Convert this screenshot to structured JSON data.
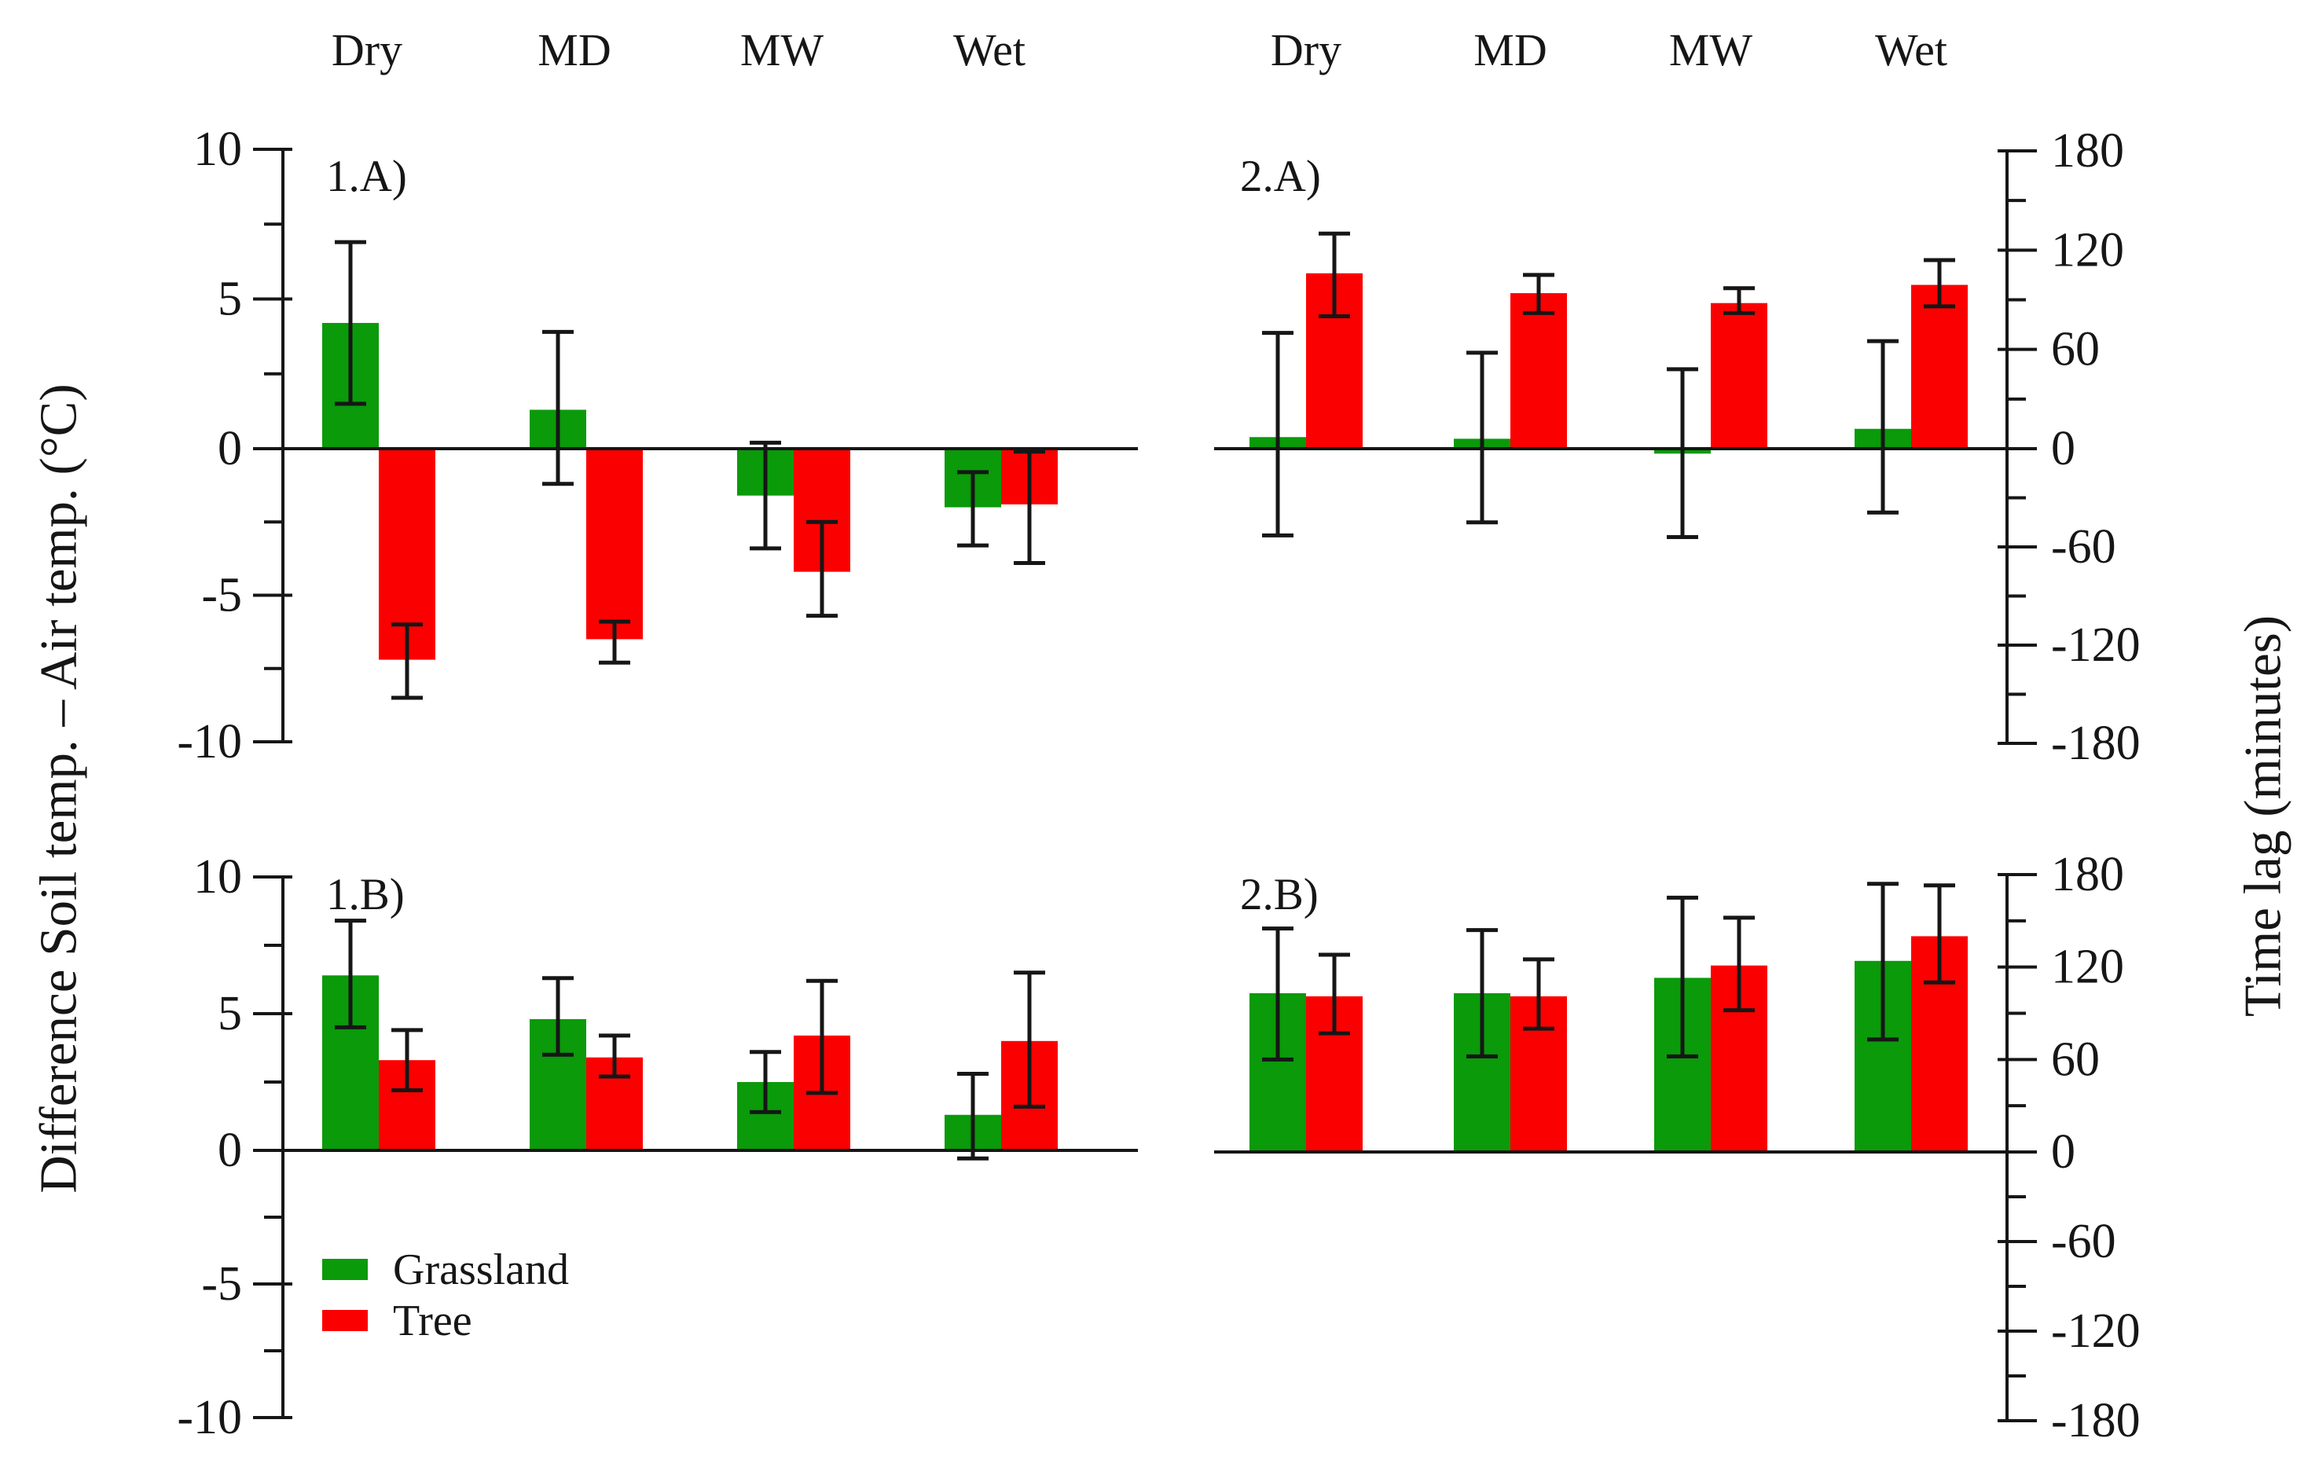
{
  "figure": {
    "background": "#ffffff",
    "colors": {
      "grassland": "#0a9a0a",
      "tree": "#fb0000",
      "axis": "#161616",
      "text": "#161616"
    },
    "left_axis_title": "Difference  Soil  temp. – Air temp. (°C)",
    "right_axis_title": "Time lag (minutes)",
    "column_labels_left": [
      "Dry",
      "MD",
      "MW",
      "Wet"
    ],
    "column_labels_right": [
      "Dry",
      "MD",
      "MW",
      "Wet"
    ],
    "legend": [
      {
        "label": "Grassland",
        "color_key": "grassland"
      },
      {
        "label": "Tree",
        "color_key": "tree"
      }
    ]
  },
  "chart_data": [
    {
      "id": "1A",
      "label": "1.A)",
      "type": "bar",
      "categories": [
        "Dry",
        "MD",
        "MW",
        "Wet"
      ],
      "ylim": [
        -10,
        10
      ],
      "ytick_major": 5,
      "ytick_minor": 2.5,
      "axis_side": "left",
      "grid": false,
      "series": [
        {
          "name": "Grassland",
          "color_key": "grassland",
          "values": [
            4.2,
            1.3,
            -1.6,
            -2.0
          ],
          "error_low": [
            1.5,
            -1.2,
            -3.4,
            -3.3
          ],
          "error_high": [
            6.9,
            3.9,
            0.2,
            -0.8
          ]
        },
        {
          "name": "Tree",
          "color_key": "tree",
          "values": [
            -7.2,
            -6.5,
            -4.2,
            -1.9
          ],
          "error_low": [
            -8.5,
            -7.3,
            -5.7,
            -3.9
          ],
          "error_high": [
            -6.0,
            -5.9,
            -2.5,
            -0.1
          ]
        }
      ]
    },
    {
      "id": "2A",
      "label": "2.A)",
      "type": "bar",
      "categories": [
        "Dry",
        "MD",
        "MW",
        "Wet"
      ],
      "ylim": [
        -180,
        180
      ],
      "ytick_major": 60,
      "ytick_minor": 30,
      "axis_side": "right",
      "grid": false,
      "series": [
        {
          "name": "Grassland",
          "color_key": "grassland",
          "values": [
            7,
            6,
            -3,
            12
          ],
          "error_low": [
            -53,
            -45,
            -54,
            -39
          ],
          "error_high": [
            70,
            58,
            48,
            65
          ]
        },
        {
          "name": "Tree",
          "color_key": "tree",
          "values": [
            106,
            94,
            88,
            99
          ],
          "error_low": [
            80,
            82,
            82,
            86
          ],
          "error_high": [
            130,
            105,
            97,
            114
          ]
        }
      ]
    },
    {
      "id": "1B",
      "label": "1.B)",
      "type": "bar",
      "categories": [
        "Dry",
        "MD",
        "MW",
        "Wet"
      ],
      "ylim": [
        -10,
        10
      ],
      "ytick_major": 5,
      "ytick_minor": 2.5,
      "axis_side": "left",
      "grid": false,
      "series": [
        {
          "name": "Grassland",
          "color_key": "grassland",
          "values": [
            6.4,
            4.8,
            2.5,
            1.3
          ],
          "error_low": [
            4.5,
            3.5,
            1.4,
            -0.3
          ],
          "error_high": [
            8.4,
            6.3,
            3.6,
            2.8
          ]
        },
        {
          "name": "Tree",
          "color_key": "tree",
          "values": [
            3.3,
            3.4,
            4.2,
            4.0
          ],
          "error_low": [
            2.2,
            2.7,
            2.1,
            1.6
          ],
          "error_high": [
            4.4,
            4.2,
            6.2,
            6.5
          ]
        }
      ]
    },
    {
      "id": "2B",
      "label": "2.B)",
      "type": "bar",
      "categories": [
        "Dry",
        "MD",
        "MW",
        "Wet"
      ],
      "ylim": [
        -180,
        180
      ],
      "ytick_major": 60,
      "ytick_minor": 30,
      "axis_side": "right",
      "grid": false,
      "series": [
        {
          "name": "Grassland",
          "color_key": "grassland",
          "values": [
            103,
            103,
            113,
            124
          ],
          "error_low": [
            60,
            62,
            62,
            73
          ],
          "error_high": [
            145,
            144,
            165,
            174
          ]
        },
        {
          "name": "Tree",
          "color_key": "tree",
          "values": [
            101,
            101,
            121,
            140
          ],
          "error_low": [
            77,
            80,
            92,
            110
          ],
          "error_high": [
            128,
            125,
            152,
            173
          ]
        }
      ]
    }
  ]
}
